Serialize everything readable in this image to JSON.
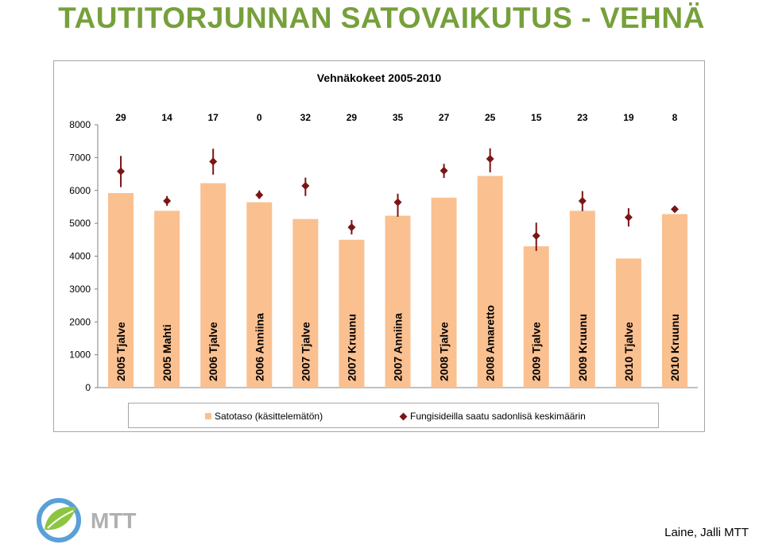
{
  "slide": {
    "title": "TAUTITORJUNNAN SATOVAIKUTUS - VEHNÄ",
    "credit": "Laine, Jalli MTT",
    "logo_text": "MTT",
    "title_color": "#76a03b"
  },
  "chart_data": {
    "type": "bar",
    "title": "Vehnäkokeet 2005-2010",
    "xlabel": "",
    "ylabel": "",
    "ylim": [
      0,
      8000
    ],
    "yticks": [
      0,
      1000,
      2000,
      3000,
      4000,
      5000,
      6000,
      7000,
      8000
    ],
    "grid": false,
    "legend_position": "bottom",
    "categories": [
      "2005 Tjalve",
      "2005 Mahti",
      "2006 Tjalve",
      "2006 Anniina",
      "2007 Tjalve",
      "2007 Kruunu",
      "2007 Anniina",
      "2008 Tjalve",
      "2008 Amaretto",
      "2009 Tjalve",
      "2009 Kruunu",
      "2010 Tjalve",
      "2010 Kruunu"
    ],
    "top_labels": [
      "29",
      "14",
      "17",
      "0",
      "32",
      "29",
      "35",
      "27",
      "25",
      "15",
      "23",
      "19",
      "8"
    ],
    "series": [
      {
        "name": "Satotaso (käsittelemätön)",
        "kind": "bar",
        "color": "#fac090",
        "values": [
          5920,
          5380,
          6220,
          5640,
          5130,
          4500,
          5230,
          5780,
          6440,
          4300,
          5380,
          null,
          5280
        ]
      },
      {
        "name": "Fungisideilla saatu sadonlisä keskimäärin",
        "kind": "marker",
        "color": "#7b1515",
        "values": [
          6580,
          5680,
          6880,
          5860,
          6140,
          4880,
          5640,
          6600,
          6960,
          4620,
          5680,
          5180,
          5430
        ],
        "error_low": [
          6100,
          5530,
          6480,
          5740,
          5830,
          4660,
          5200,
          6380,
          6550,
          4160,
          5370,
          4900,
          5340
        ],
        "error_high": [
          7050,
          5830,
          7270,
          6000,
          6390,
          5100,
          5900,
          6810,
          7280,
          5020,
          5980,
          5460,
          5520
        ]
      },
      {
        "name": "",
        "kind": "bar",
        "color": "#fac090",
        "values": [
          null,
          null,
          null,
          null,
          null,
          null,
          null,
          null,
          null,
          null,
          null,
          3930,
          null
        ]
      }
    ]
  }
}
